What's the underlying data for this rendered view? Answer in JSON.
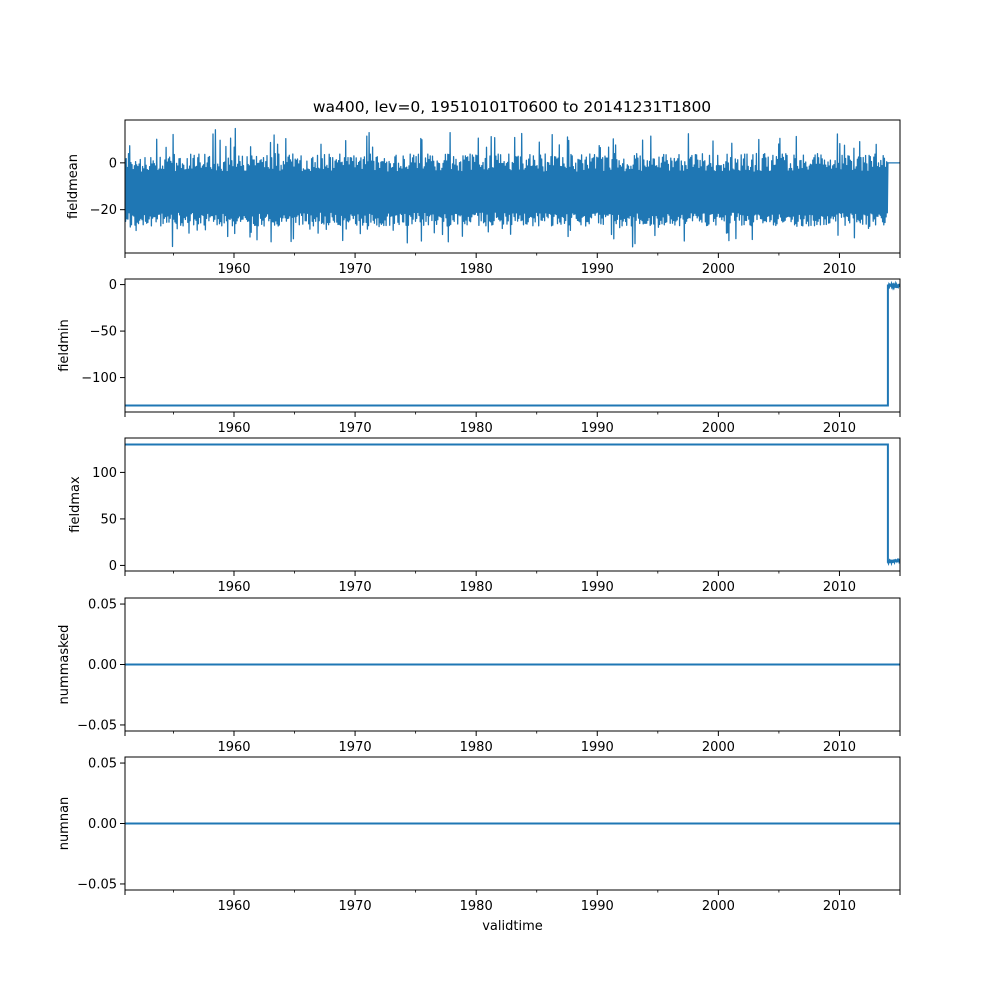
{
  "title": "wa400, lev=0, 19510101T0600 to 20141231T1800",
  "line_color": "#1f77b4",
  "chart_data": [
    {
      "type": "line",
      "ylabel": "fieldmean",
      "xlabel": "",
      "xlim": [
        1951.0,
        2015.0
      ],
      "ylim": [
        -38.5,
        18.3
      ],
      "x_ticks": [
        1960,
        1970,
        1980,
        1990,
        2000,
        2010
      ],
      "y_ticks": [
        0,
        -20
      ],
      "y_tick_labels": [
        "0",
        "−20"
      ],
      "grid": false,
      "description_values": {
        "x": [
          1951.0,
          2014.0,
          2014.0,
          2015.0
        ],
        "band_low": -23,
        "band_high": 4,
        "spike_min": -36,
        "spike_max": 15.5,
        "after_2014": 0
      }
    },
    {
      "type": "line",
      "ylabel": "fieldmin",
      "xlabel": "",
      "xlim": [
        1951.0,
        2015.0
      ],
      "ylim": [
        -137,
        6
      ],
      "x_ticks": [
        1960,
        1970,
        1980,
        1990,
        2000,
        2010
      ],
      "y_ticks": [
        0,
        -50,
        -100
      ],
      "y_tick_labels": [
        "0",
        "−50",
        "−100"
      ],
      "grid": false,
      "x": [
        1951.0,
        2014.0,
        2014.0,
        2015.0
      ],
      "y": [
        -130,
        -130,
        -1,
        -1
      ]
    },
    {
      "type": "line",
      "ylabel": "fieldmax",
      "xlabel": "",
      "xlim": [
        1951.0,
        2015.0
      ],
      "ylim": [
        -6,
        137
      ],
      "x_ticks": [
        1960,
        1970,
        1980,
        1990,
        2000,
        2010
      ],
      "y_ticks": [
        100,
        50,
        0
      ],
      "y_tick_labels": [
        "100",
        "50",
        "0"
      ],
      "grid": false,
      "x": [
        1951.0,
        2014.0,
        2014.0,
        2015.0
      ],
      "y": [
        130,
        130,
        4,
        5
      ]
    },
    {
      "type": "line",
      "ylabel": "nummasked",
      "xlabel": "",
      "xlim": [
        1951.0,
        2015.0
      ],
      "ylim": [
        -0.055,
        0.055
      ],
      "x_ticks": [
        1960,
        1970,
        1980,
        1990,
        2000,
        2010
      ],
      "y_ticks": [
        0.05,
        0.0,
        -0.05
      ],
      "y_tick_labels": [
        "0.05",
        "0.00",
        "−0.05"
      ],
      "grid": false,
      "x": [
        1951.0,
        2015.0
      ],
      "y": [
        0,
        0
      ]
    },
    {
      "type": "line",
      "ylabel": "numnan",
      "xlabel": "validtime",
      "xlim": [
        1951.0,
        2015.0
      ],
      "ylim": [
        -0.055,
        0.055
      ],
      "x_ticks": [
        1960,
        1970,
        1980,
        1990,
        2000,
        2010
      ],
      "y_ticks": [
        0.05,
        0.0,
        -0.05
      ],
      "y_tick_labels": [
        "0.05",
        "0.00",
        "−0.05"
      ],
      "grid": false,
      "x": [
        1951.0,
        2015.0
      ],
      "y": [
        0,
        0
      ]
    }
  ]
}
